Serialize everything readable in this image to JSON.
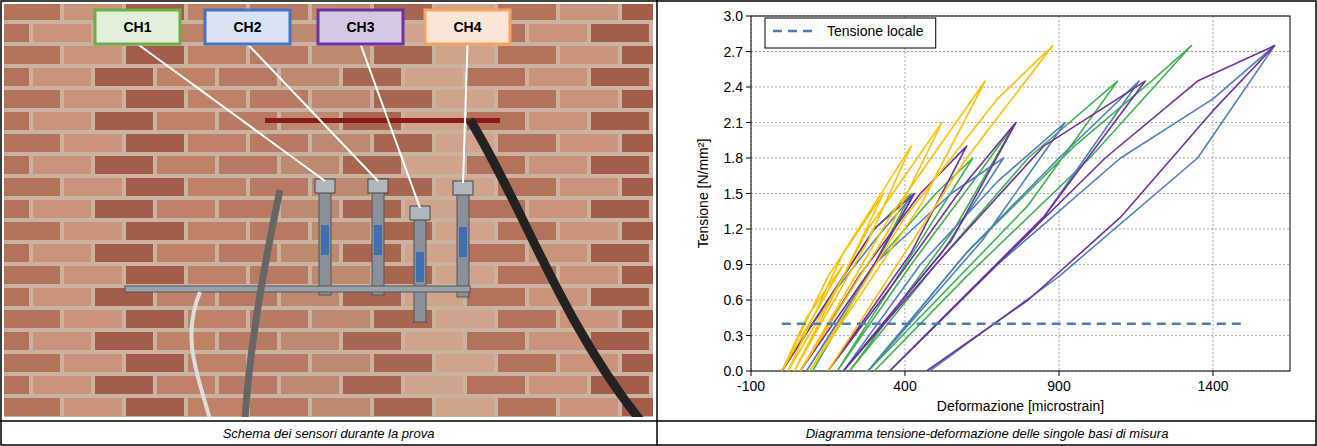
{
  "photo": {
    "labels": [
      {
        "text": "CH1",
        "color": "#70ad47"
      },
      {
        "text": "CH2",
        "color": "#4472c4"
      },
      {
        "text": "CH3",
        "color": "#7030a0"
      },
      {
        "text": "CH4",
        "color": "#f4a460"
      }
    ]
  },
  "captions": [
    "Schema dei sensori durante la prova",
    "Diagramma tensione-deformazione delle singole basi di misura"
  ],
  "chart_data": {
    "type": "line",
    "x_label": "Deformazione [microstrain]",
    "y_label": "Tensione [N/mm²]",
    "xlim": [
      -100,
      1650
    ],
    "xticks": [
      -100,
      400,
      900,
      1400
    ],
    "ylim": [
      0,
      3
    ],
    "yticks": [
      {
        "value": 0,
        "label": "0.0"
      },
      0.3,
      0.6,
      0.9,
      1.2,
      1.5,
      1.8,
      2.1,
      2.4,
      2.7,
      {
        "value": 3,
        "label": "3.0"
      }
    ],
    "grid": true,
    "legend": "upper left",
    "series": [
      {
        "color": "#3cb44b",
        "line_style": "solid",
        "x": [
          0,
          150,
          300,
          420,
          300,
          100,
          300,
          500,
          620,
          450,
          180,
          420,
          620,
          760,
          560,
          220,
          500,
          800,
          1090,
          800,
          280,
          600,
          950,
          1200,
          1330,
          1000,
          600,
          300
        ],
        "values": [
          0,
          0.6,
          1.2,
          1.5,
          0.9,
          0,
          0.9,
          1.5,
          1.8,
          1.1,
          0,
          0.9,
          1.6,
          2.1,
          1.2,
          0,
          0.9,
          1.8,
          2.45,
          1.4,
          0,
          1.0,
          1.9,
          2.45,
          2.75,
          1.8,
          0.8,
          0
        ]
      },
      {
        "color": "#4f81bd",
        "line_style": "solid",
        "x": [
          0,
          150,
          300,
          430,
          280,
          80,
          300,
          550,
          720,
          520,
          200,
          450,
          700,
          920,
          650,
          280,
          600,
          900,
          1160,
          850,
          350,
          700,
          1100,
          1400,
          1600,
          1350,
          900,
          480
        ],
        "values": [
          0,
          0.6,
          1.1,
          1.5,
          0.8,
          0,
          0.9,
          1.5,
          1.8,
          1.0,
          0,
          0.9,
          1.6,
          2.1,
          1.1,
          0,
          1.0,
          1.8,
          2.45,
          1.3,
          0,
          0.9,
          1.8,
          2.3,
          2.75,
          1.8,
          0.8,
          0
        ]
      },
      {
        "color": "#7030a0",
        "line_style": "solid",
        "x": [
          0,
          150,
          300,
          430,
          300,
          60,
          250,
          450,
          600,
          420,
          150,
          380,
          600,
          760,
          550,
          200,
          500,
          850,
          1180,
          850,
          350,
          700,
          1050,
          1350,
          1600,
          1400,
          1100,
          800,
          470
        ],
        "values": [
          0,
          0.6,
          1.2,
          1.5,
          0.9,
          0,
          0.8,
          1.5,
          1.9,
          1.0,
          0,
          0.8,
          1.6,
          2.1,
          1.1,
          0,
          0.9,
          1.9,
          2.45,
          1.3,
          0,
          0.9,
          1.8,
          2.45,
          2.75,
          2.2,
          1.3,
          0.6,
          0
        ]
      },
      {
        "color": "#ffc000",
        "line_style": "solid",
        "x": [
          0,
          80,
          200,
          100,
          0,
          150,
          330,
          200,
          20,
          200,
          420,
          280,
          40,
          280,
          520,
          350,
          60,
          350,
          660,
          450,
          90,
          400,
          700,
          880,
          600,
          150
        ],
        "values": [
          0,
          0.45,
          0.9,
          0.45,
          0,
          0.8,
          1.5,
          0.8,
          0,
          1.0,
          1.9,
          1.1,
          0,
          1.2,
          2.1,
          1.2,
          0,
          1.3,
          2.45,
          1.4,
          0,
          1.3,
          2.3,
          2.75,
          1.8,
          0
        ]
      },
      {
        "name": "Tensione locale",
        "color": "#4a7ebb",
        "line_style": "dashed",
        "x": [
          0,
          1500
        ],
        "values": [
          0.4,
          0.4
        ]
      }
    ]
  }
}
